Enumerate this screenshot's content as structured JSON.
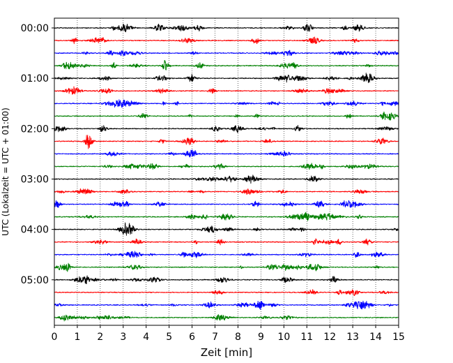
{
  "chart_data": {
    "type": "line",
    "title": "",
    "xlabel": "Zeit  [min]",
    "ylabel": "UTC (Lokalzeit = UTC + 01:00)",
    "xlim": [
      0,
      15
    ],
    "x_ticks": [
      "0",
      "1",
      "2",
      "3",
      "4",
      "5",
      "6",
      "7",
      "8",
      "9",
      "10",
      "11",
      "12",
      "13",
      "14",
      "15"
    ],
    "y_tick_labels": [
      "00:00",
      "01:00",
      "02:00",
      "03:00",
      "04:00",
      "05:00"
    ],
    "rows_per_hour": 4,
    "grid": "vertical dotted lines at each minute",
    "trace_colors": [
      "#000000",
      "#ff0000",
      "#0000ff",
      "#008000"
    ],
    "series": [
      {
        "start": "00:00"
      },
      {
        "start": "00:15"
      },
      {
        "start": "00:30"
      },
      {
        "start": "00:45"
      },
      {
        "start": "01:00"
      },
      {
        "start": "01:15"
      },
      {
        "start": "01:30"
      },
      {
        "start": "01:45"
      },
      {
        "start": "02:00"
      },
      {
        "start": "02:15"
      },
      {
        "start": "02:30"
      },
      {
        "start": "02:45"
      },
      {
        "start": "03:00"
      },
      {
        "start": "03:15"
      },
      {
        "start": "03:30"
      },
      {
        "start": "03:45"
      },
      {
        "start": "04:00"
      },
      {
        "start": "04:15"
      },
      {
        "start": "04:30"
      },
      {
        "start": "04:45"
      },
      {
        "start": "05:00"
      },
      {
        "start": "05:15"
      },
      {
        "start": "05:30"
      },
      {
        "start": "05:45"
      }
    ]
  }
}
